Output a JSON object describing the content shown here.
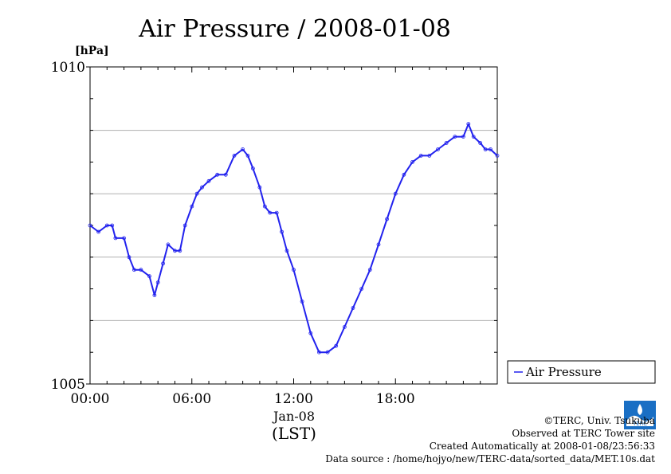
{
  "chart_data": {
    "type": "line",
    "title": "Air Pressure / 2008-01-08",
    "ylabel": "[hPa]",
    "ylim": [
      1005,
      1010
    ],
    "y_ticks": [
      1005,
      1010
    ],
    "y_tick_labels": [
      "1005",
      "1010"
    ],
    "y_gridlines": [
      1006,
      1007,
      1008,
      1009
    ],
    "xlim_hours": [
      0,
      24
    ],
    "x_tick_labels": [
      "00:00",
      "06:00",
      "12:00",
      "18:00"
    ],
    "x_date_label": "Jan-08",
    "x_unit_label": "(LST)",
    "legend_position": "right",
    "series": [
      {
        "name": "Air Pressure",
        "color": "#2222ee",
        "x": [
          0.0,
          0.5,
          1.0,
          1.3,
          1.5,
          2.0,
          2.3,
          2.6,
          3.0,
          3.5,
          3.8,
          4.0,
          4.3,
          4.6,
          5.0,
          5.3,
          5.6,
          6.0,
          6.3,
          6.6,
          7.0,
          7.5,
          8.0,
          8.5,
          9.0,
          9.3,
          9.6,
          10.0,
          10.3,
          10.6,
          11.0,
          11.3,
          11.6,
          12.0,
          12.5,
          13.0,
          13.5,
          14.0,
          14.5,
          15.0,
          15.5,
          16.0,
          16.5,
          17.0,
          17.5,
          18.0,
          18.5,
          19.0,
          19.5,
          20.0,
          20.5,
          21.0,
          21.5,
          22.0,
          22.3,
          22.6,
          23.0,
          23.3,
          23.6,
          24.0
        ],
        "y": [
          1007.5,
          1007.4,
          1007.5,
          1007.5,
          1007.3,
          1007.3,
          1007.0,
          1006.8,
          1006.8,
          1006.7,
          1006.4,
          1006.6,
          1006.9,
          1007.2,
          1007.1,
          1007.1,
          1007.5,
          1007.8,
          1008.0,
          1008.1,
          1008.2,
          1008.3,
          1008.3,
          1008.6,
          1008.7,
          1008.6,
          1008.4,
          1008.1,
          1007.8,
          1007.7,
          1007.7,
          1007.4,
          1007.1,
          1006.8,
          1006.3,
          1005.8,
          1005.5,
          1005.5,
          1005.6,
          1005.9,
          1006.2,
          1006.5,
          1006.8,
          1007.2,
          1007.6,
          1008.0,
          1008.3,
          1008.5,
          1008.6,
          1008.6,
          1008.7,
          1008.8,
          1008.9,
          1008.9,
          1009.1,
          1008.9,
          1008.8,
          1008.7,
          1008.7,
          1008.6
        ]
      }
    ]
  },
  "footer": {
    "copyright": "©TERC, Univ. Tsukuba",
    "observed": "Observed at TERC Tower site",
    "created": "Created Automatically at 2008-01-08/23:56:33",
    "source": "Data source : /home/hojyo/new/TERC-data/sorted_data/MET.10s.dat",
    "logo_text": "TERC"
  }
}
